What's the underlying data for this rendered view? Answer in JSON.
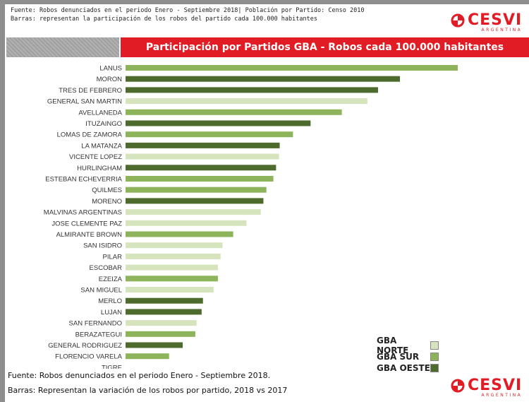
{
  "source_top": [
    "Fuente: Robos denunciados en el periodo Enero - Septiembre 2018| Población por Partido: Censo 2010",
    "Barras: representan la participación de los robos del partido cada 100.000 habitantes"
  ],
  "logo": {
    "name": "CESVI",
    "sub": "ARGENTINA"
  },
  "chart_data": {
    "type": "bar",
    "orientation": "horizontal",
    "title": "Participación por Partidos GBA - Robos cada 100.000 habitantes",
    "categories": [
      "LANUS",
      "MORON",
      "TRES DE FEBRERO",
      "GENERAL SAN MARTIN",
      "AVELLANEDA",
      "ITUZAINGO",
      "LOMAS DE ZAMORA",
      "LA MATANZA",
      "VICENTE LOPEZ",
      "HURLINGHAM",
      "ESTEBAN ECHEVERRIA",
      "QUILMES",
      "MORENO",
      "MALVINAS ARGENTINAS",
      "JOSE CLEMENTE PAZ",
      "ALMIRANTE BROWN",
      "SAN ISIDRO",
      "PILAR",
      "ESCOBAR",
      "EZEIZA",
      "SAN MIGUEL",
      "MERLO",
      "LUJAN",
      "SAN FERNANDO",
      "BERAZATEGUI",
      "GENERAL RODRIGUEZ",
      "FLORENCIO VARELA",
      "TIGRE"
    ],
    "values": [
      100,
      82.6,
      76.0,
      72.8,
      65.1,
      55.7,
      50.4,
      46.4,
      46.2,
      45.3,
      44.5,
      42.4,
      41.5,
      40.7,
      36.4,
      32.4,
      29.2,
      28.6,
      27.8,
      27.8,
      26.5,
      23.3,
      22.9,
      21.4,
      21.0,
      17.2,
      13.1,
      0
    ],
    "groups": [
      "sur",
      "oeste",
      "oeste",
      "norte",
      "sur",
      "oeste",
      "sur",
      "oeste",
      "norte",
      "oeste",
      "sur",
      "sur",
      "oeste",
      "norte",
      "norte",
      "sur",
      "norte",
      "norte",
      "norte",
      "sur",
      "norte",
      "oeste",
      "oeste",
      "norte",
      "sur",
      "oeste",
      "sur",
      "norte"
    ],
    "legend": [
      {
        "key": "norte",
        "label": "GBA NORTE",
        "color": "#d6e4bd"
      },
      {
        "key": "sur",
        "label": "GBA SUR",
        "color": "#8db45a"
      },
      {
        "key": "oeste",
        "label": "GBA OESTE",
        "color": "#4d6b2c"
      }
    ],
    "xlim": [
      0,
      100
    ]
  },
  "source_bottom": [
    "Fuente: Robos denunciados en el periodo Enero - Septiembre 2018.",
    "Barras: Representan la variación de los robos por partido, 2018 vs 2017"
  ]
}
